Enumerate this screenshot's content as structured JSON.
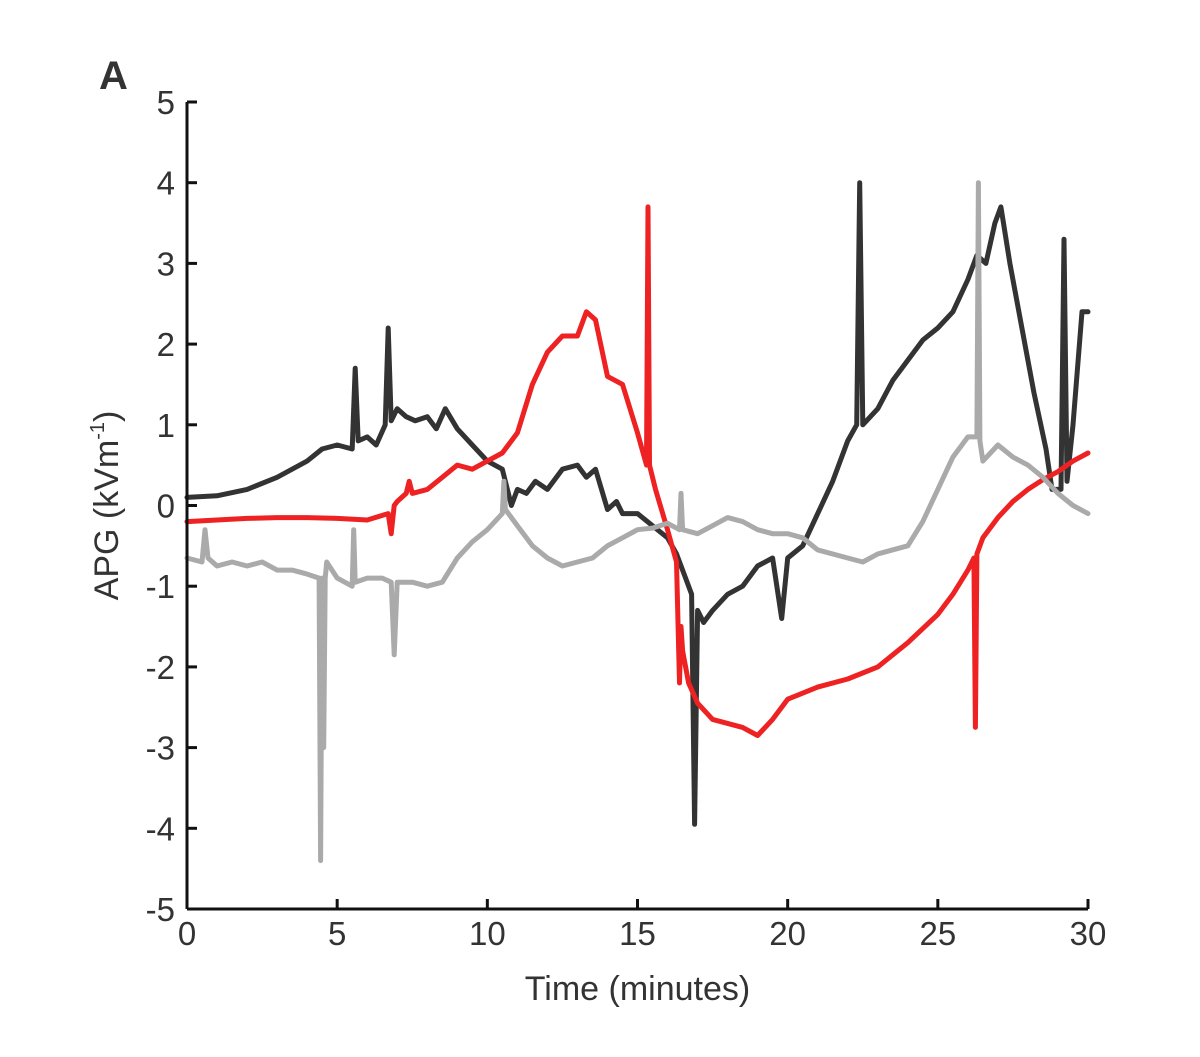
{
  "panel_label": "A",
  "chart_data": {
    "type": "line",
    "xlabel": "Time (minutes)",
    "ylabel": "APG (kVm",
    "ylabel_superscript": "-1",
    "ylabel_close": ")",
    "xlim": [
      0,
      30
    ],
    "ylim": [
      -5,
      5
    ],
    "xticks": [
      "0",
      "5",
      "10",
      "15",
      "20",
      "25",
      "30"
    ],
    "yticks": [
      "5",
      "4",
      "3",
      "2",
      "1",
      "0",
      "-1",
      "-2",
      "-3",
      "-4",
      "-5"
    ],
    "grid": false,
    "legend": "none",
    "series": [
      {
        "color": "#333333",
        "x": [
          0,
          1,
          2,
          3,
          4,
          4.5,
          5,
          5.5,
          5.6,
          5.7,
          6,
          6.3,
          6.6,
          6.7,
          6.8,
          7,
          7.3,
          7.6,
          8,
          8.3,
          8.6,
          9,
          9.5,
          10,
          10.5,
          10.8,
          11,
          11.3,
          11.6,
          12,
          12.5,
          13,
          13.3,
          13.6,
          14,
          14.3,
          14.5,
          15,
          15.5,
          16,
          16.3,
          16.6,
          16.8,
          16.9,
          17,
          17.2,
          17.5,
          18,
          18.5,
          19,
          19.5,
          19.8,
          20,
          20.5,
          21,
          21.5,
          22,
          22.3,
          22.4,
          22.5,
          23,
          23.5,
          24,
          24.5,
          25,
          25.5,
          26,
          26.3,
          26.6,
          26.9,
          27.1,
          27.4,
          27.8,
          28.2,
          28.6,
          28.8,
          29.1,
          29.2,
          29.3,
          29.5,
          29.8,
          30
        ],
        "y": [
          0.1,
          0.12,
          0.2,
          0.35,
          0.55,
          0.7,
          0.75,
          0.7,
          1.7,
          0.8,
          0.85,
          0.75,
          1.0,
          2.2,
          1.05,
          1.2,
          1.1,
          1.05,
          1.1,
          0.95,
          1.2,
          0.95,
          0.75,
          0.55,
          0.45,
          0.0,
          0.2,
          0.15,
          0.3,
          0.2,
          0.45,
          0.5,
          0.35,
          0.45,
          -0.05,
          0.05,
          -0.1,
          -0.1,
          -0.25,
          -0.4,
          -0.6,
          -0.9,
          -1.1,
          -3.95,
          -1.3,
          -1.45,
          -1.3,
          -1.1,
          -1.0,
          -0.75,
          -0.65,
          -1.4,
          -0.65,
          -0.5,
          -0.1,
          0.3,
          0.8,
          1.0,
          4.0,
          1.0,
          1.2,
          1.55,
          1.8,
          2.05,
          2.2,
          2.4,
          2.8,
          3.1,
          3.0,
          3.5,
          3.7,
          3.0,
          2.2,
          1.4,
          0.7,
          0.2,
          0.2,
          3.3,
          0.3,
          1.0,
          2.4,
          2.4
        ]
      },
      {
        "color": "#ee2222",
        "x": [
          0,
          1,
          2,
          3,
          4,
          5,
          6,
          6.7,
          6.8,
          6.9,
          7,
          7.3,
          7.4,
          7.5,
          8,
          8.5,
          9,
          9.5,
          10,
          10.5,
          11,
          11.5,
          12,
          12.5,
          13,
          13.3,
          13.6,
          14,
          14.5,
          15,
          15.3,
          15.35,
          15.4,
          15.6,
          16,
          16.3,
          16.4,
          16.45,
          16.5,
          16.7,
          17,
          17.5,
          18,
          18.5,
          19,
          19.5,
          20,
          21,
          22,
          23,
          24,
          25,
          25.5,
          26,
          26.2,
          26.25,
          26.3,
          26.5,
          27,
          27.5,
          28,
          28.5,
          29,
          29.5,
          30
        ],
        "y": [
          -0.2,
          -0.18,
          -0.16,
          -0.15,
          -0.15,
          -0.16,
          -0.18,
          -0.1,
          -0.35,
          0.0,
          0.05,
          0.15,
          0.3,
          0.15,
          0.2,
          0.35,
          0.5,
          0.45,
          0.55,
          0.65,
          0.9,
          1.5,
          1.9,
          2.1,
          2.1,
          2.4,
          2.3,
          1.6,
          1.5,
          0.9,
          0.5,
          3.7,
          0.5,
          0.2,
          -0.3,
          -0.7,
          -2.2,
          -1.5,
          -1.8,
          -2.2,
          -2.45,
          -2.65,
          -2.7,
          -2.75,
          -2.85,
          -2.65,
          -2.4,
          -2.25,
          -2.15,
          -2.0,
          -1.7,
          -1.35,
          -1.1,
          -0.8,
          -0.65,
          -2.75,
          -0.6,
          -0.4,
          -0.15,
          0.05,
          0.2,
          0.32,
          0.42,
          0.55,
          0.65
        ]
      },
      {
        "color": "#aaaaaa",
        "x": [
          0,
          0.5,
          0.6,
          0.7,
          1,
          1.5,
          2,
          2.5,
          3,
          3.5,
          4,
          4.4,
          4.45,
          4.5,
          4.55,
          4.6,
          4.65,
          5,
          5.5,
          5.55,
          5.6,
          6,
          6.5,
          6.8,
          6.9,
          7.0,
          7.5,
          8,
          8.5,
          9,
          9.5,
          10,
          10.5,
          10.55,
          10.6,
          11,
          11.5,
          12,
          12.5,
          13,
          13.5,
          14,
          14.5,
          15,
          15.5,
          16,
          16.4,
          16.45,
          16.5,
          17,
          17.5,
          18,
          18.5,
          19,
          19.5,
          20,
          20.5,
          21,
          22,
          22.5,
          23,
          24,
          24.5,
          25,
          25.5,
          26,
          26.3,
          26.35,
          26.4,
          26.5,
          27,
          27.5,
          28,
          28.5,
          29,
          29.5,
          30
        ],
        "y": [
          -0.65,
          -0.7,
          -0.3,
          -0.65,
          -0.75,
          -0.7,
          -0.75,
          -0.7,
          -0.8,
          -0.8,
          -0.85,
          -0.9,
          -4.4,
          -0.9,
          -3.0,
          -0.9,
          -0.7,
          -0.9,
          -1.0,
          -0.3,
          -0.95,
          -0.9,
          -0.9,
          -0.95,
          -1.85,
          -0.95,
          -0.95,
          -1.0,
          -0.95,
          -0.65,
          -0.45,
          -0.3,
          -0.1,
          0.3,
          -0.05,
          -0.25,
          -0.5,
          -0.65,
          -0.75,
          -0.7,
          -0.65,
          -0.5,
          -0.4,
          -0.3,
          -0.28,
          -0.22,
          -0.3,
          0.15,
          -0.3,
          -0.35,
          -0.25,
          -0.15,
          -0.2,
          -0.3,
          -0.35,
          -0.35,
          -0.4,
          -0.55,
          -0.65,
          -0.7,
          -0.6,
          -0.5,
          -0.2,
          0.2,
          0.6,
          0.85,
          0.85,
          4.0,
          0.8,
          0.55,
          0.75,
          0.6,
          0.5,
          0.35,
          0.15,
          0.0,
          -0.1
        ]
      }
    ]
  }
}
